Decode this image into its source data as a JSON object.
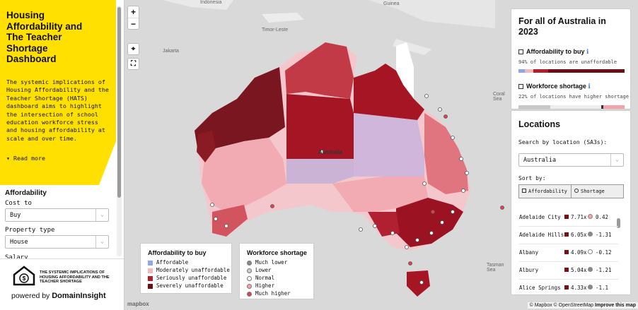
{
  "sidebar": {
    "title": "Housing Affordability and The Teacher Shortage Dashboard",
    "description": "The systemic implications of Housing Affordability and the Teacher Shortage (HATS) dashboard aims to highlight the intersection of school education workforce stress and housing affordability at scale and over time.",
    "read_more": "Read more",
    "section": "Affordability",
    "cost_to_label": "Cost to",
    "cost_to_value": "Buy",
    "property_type_label": "Property type",
    "property_type_value": "House",
    "salary_label": "Salary",
    "logo_text": "THE SYSTEMIC IMPLICATIONS OF HOUSING AFFORDABILITY AND THE TEACHER SHORTAGE",
    "powered_by": "powered by",
    "powered_brand": "DomainInsight",
    "accent_yellow": "#ffe000"
  },
  "map": {
    "zoom_in": "+",
    "zoom_out": "−",
    "places": [
      "Indonesia",
      "Guinea",
      "Timor-Leste",
      "Jakarta",
      "Australia",
      "Coral Sea",
      "Tasman Sea"
    ],
    "mapbox_logo": "mapbox",
    "attribution": "© Mapbox © OpenStreetMap",
    "improve": "Improve this map"
  },
  "summary": {
    "title": "For all of Australia in 2023",
    "affordability_label": "Affordability to buy",
    "affordability_note": "94% of locations are unaffordable",
    "workforce_label": "Workforce shortage",
    "workforce_note": "22% of locations have higher shortage",
    "info_icon": "ℹ"
  },
  "locations": {
    "title": "Locations",
    "search_label": "Search by location (SA3s):",
    "search_value": "Australia",
    "sort_label": "Sort by:",
    "sort_options": [
      "Affordability",
      "Shortage"
    ],
    "rows": [
      {
        "name": "Adelaide City",
        "afford": "7.71x",
        "shortage": "0.42"
      },
      {
        "name": "Adelaide Hills",
        "afford": "6.05x",
        "shortage": "-1.31"
      },
      {
        "name": "Albany",
        "afford": "4.09x",
        "shortage": "-0.12"
      },
      {
        "name": "Albury",
        "afford": "5.04x",
        "shortage": "-1.21"
      },
      {
        "name": "Alice Springs",
        "afford": "4.33x",
        "shortage": "-1.1"
      }
    ]
  },
  "legend_afford": {
    "title": "Affordability to buy",
    "items": [
      "Affordable",
      "Moderately unaffordable",
      "Seriously unaffordable",
      "Severely unaffordable"
    ],
    "colors": [
      "#8da7e8",
      "#f2b8bf",
      "#b01e2a",
      "#6e0d14"
    ]
  },
  "legend_shortage": {
    "title": "Workforce shortage",
    "items": [
      "Much lower",
      "Lower",
      "Normal",
      "Higher",
      "Much higher"
    ],
    "colors": [
      "#888888",
      "#cccccc",
      "#ffffff",
      "#f7a1a8",
      "#e0404f"
    ]
  }
}
